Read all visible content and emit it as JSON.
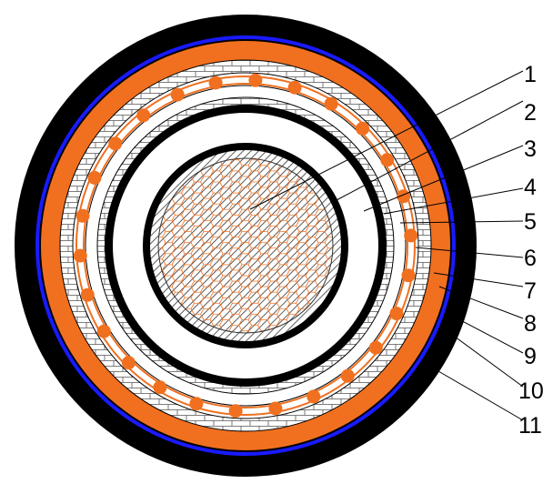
{
  "diagram": {
    "callouts": [
      {
        "label": "1"
      },
      {
        "label": "2"
      },
      {
        "label": "3"
      },
      {
        "label": "4"
      },
      {
        "label": "5"
      },
      {
        "label": "6"
      },
      {
        "label": "7"
      },
      {
        "label": "8"
      },
      {
        "label": "9"
      },
      {
        "label": "10"
      },
      {
        "label": "11"
      }
    ],
    "colors": {
      "outer_sheath": "#000000",
      "blue_band": "#1a1aff",
      "copper": "#f07020",
      "insulation": "#ffffff",
      "hatch": "#333333",
      "text": "#000000"
    },
    "armour_wire_count": 26
  }
}
